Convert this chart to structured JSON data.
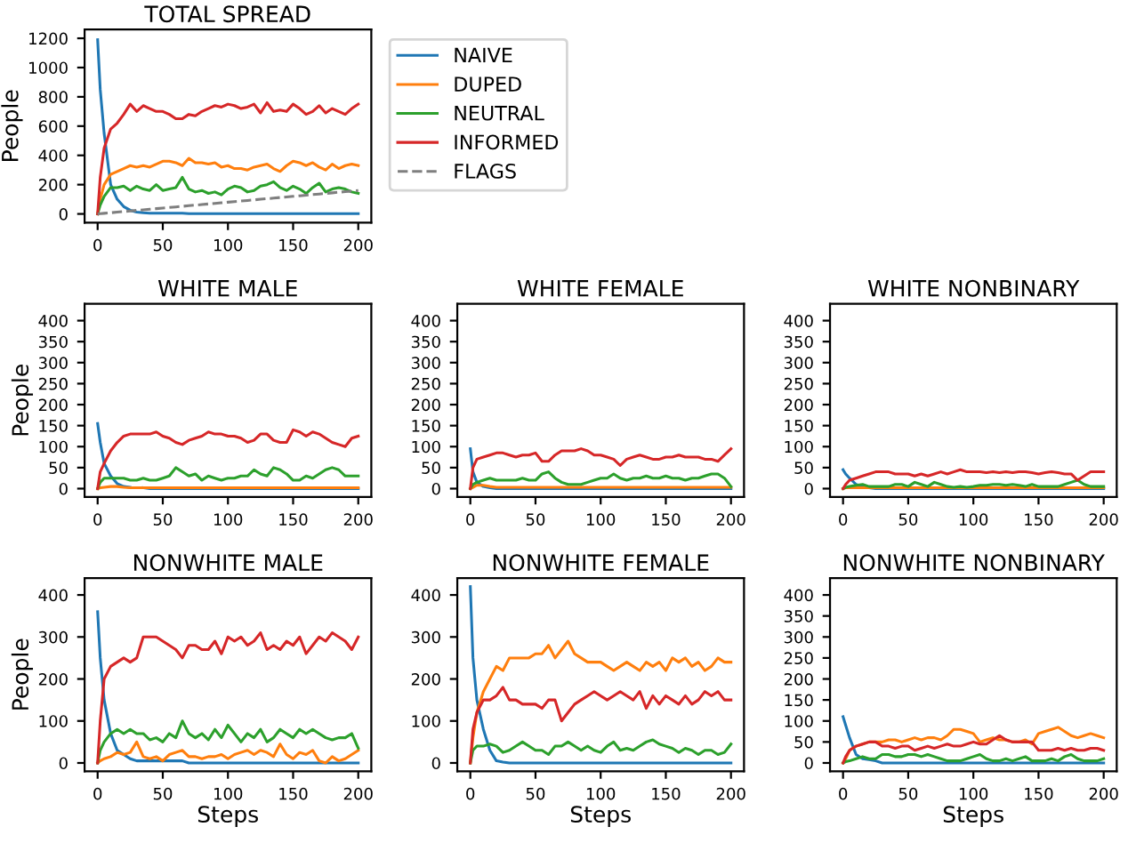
{
  "chart_data": [
    {
      "type": "line",
      "title": "TOTAL SPREAD",
      "ylabel": "People",
      "legend": "right",
      "x": [
        0,
        2,
        5,
        10,
        15,
        20,
        25,
        30,
        35,
        40,
        45,
        50,
        55,
        60,
        65,
        70,
        75,
        80,
        85,
        90,
        95,
        100,
        105,
        110,
        115,
        120,
        125,
        130,
        135,
        140,
        145,
        150,
        155,
        160,
        165,
        170,
        175,
        180,
        185,
        190,
        195,
        200
      ],
      "xlim": [
        -10,
        210
      ],
      "xticks": [
        0,
        50,
        100,
        150,
        200
      ],
      "ylim": [
        -60,
        1260
      ],
      "yticks": [
        0,
        200,
        400,
        600,
        800,
        1000,
        1200
      ],
      "series": [
        {
          "name": "NAIVE",
          "color": "#1f77b4",
          "values": [
            1190,
            850,
            550,
            200,
            100,
            50,
            25,
            12,
            8,
            5,
            5,
            5,
            5,
            5,
            5,
            2,
            2,
            2,
            2,
            2,
            2,
            2,
            2,
            2,
            2,
            2,
            2,
            2,
            2,
            2,
            2,
            2,
            2,
            2,
            2,
            2,
            2,
            2,
            2,
            2,
            2,
            2
          ]
        },
        {
          "name": "DUPED",
          "color": "#ff7f0e",
          "values": [
            0,
            100,
            200,
            270,
            290,
            310,
            330,
            320,
            330,
            320,
            340,
            360,
            360,
            350,
            330,
            380,
            350,
            350,
            340,
            350,
            320,
            330,
            310,
            310,
            300,
            320,
            330,
            340,
            310,
            290,
            330,
            360,
            350,
            330,
            350,
            320,
            300,
            340,
            310,
            330,
            340,
            330
          ]
        },
        {
          "name": "NEUTRAL",
          "color": "#2ca02c",
          "values": [
            0,
            60,
            120,
            180,
            180,
            190,
            160,
            190,
            170,
            160,
            200,
            160,
            170,
            180,
            250,
            170,
            150,
            160,
            140,
            150,
            130,
            170,
            190,
            180,
            150,
            160,
            190,
            200,
            220,
            180,
            160,
            190,
            170,
            140,
            180,
            210,
            150,
            170,
            180,
            170,
            150,
            140
          ]
        },
        {
          "name": "INFORMED",
          "color": "#d62728",
          "values": [
            0,
            250,
            450,
            580,
            620,
            680,
            750,
            700,
            740,
            720,
            700,
            700,
            680,
            650,
            650,
            680,
            670,
            700,
            720,
            740,
            730,
            750,
            740,
            720,
            730,
            750,
            690,
            760,
            700,
            710,
            700,
            750,
            720,
            680,
            700,
            740,
            690,
            720,
            700,
            680,
            720,
            750
          ]
        },
        {
          "name": "FLAGS",
          "color": "#7f7f7f",
          "line_style": "dashed",
          "values": [
            0,
            2,
            4,
            8,
            12,
            16,
            20,
            24,
            28,
            32,
            36,
            40,
            44,
            48,
            52,
            56,
            60,
            64,
            68,
            72,
            76,
            80,
            84,
            88,
            92,
            96,
            100,
            104,
            108,
            112,
            116,
            120,
            124,
            128,
            132,
            136,
            140,
            144,
            148,
            152,
            156,
            160
          ]
        }
      ]
    },
    {
      "type": "line",
      "title": "WHITE MALE",
      "ylabel": "People",
      "x": [
        0,
        2,
        5,
        10,
        15,
        20,
        25,
        30,
        35,
        40,
        45,
        50,
        55,
        60,
        65,
        70,
        75,
        80,
        85,
        90,
        95,
        100,
        105,
        110,
        115,
        120,
        125,
        130,
        135,
        140,
        145,
        150,
        155,
        160,
        165,
        170,
        175,
        180,
        185,
        190,
        195,
        200
      ],
      "xlim": [
        -10,
        210
      ],
      "xticks": [
        0,
        50,
        100,
        150,
        200
      ],
      "ylim": [
        -20,
        440
      ],
      "yticks": [
        0,
        50,
        100,
        150,
        200,
        250,
        300,
        350,
        400
      ],
      "series": [
        {
          "color": "#1f77b4",
          "values": [
            155,
            110,
            60,
            30,
            12,
            5,
            3,
            null,
            2,
            0,
            0,
            0,
            0,
            0,
            0,
            0,
            0,
            0,
            0,
            0,
            0,
            0,
            0,
            0,
            0,
            0,
            0,
            0,
            0,
            0,
            0,
            0,
            0,
            0,
            0,
            0,
            0,
            0,
            0,
            0,
            0,
            0
          ]
        },
        {
          "color": "#ff7f0e",
          "values": [
            0,
            2,
            3,
            5,
            5,
            3,
            2,
            2,
            2,
            2,
            2,
            2,
            2,
            2,
            2,
            2,
            2,
            2,
            2,
            2,
            2,
            2,
            2,
            2,
            2,
            2,
            2,
            2,
            2,
            2,
            2,
            2,
            2,
            2,
            2,
            2,
            2,
            2,
            2,
            2,
            2,
            2
          ]
        },
        {
          "color": "#2ca02c",
          "values": [
            0,
            15,
            25,
            25,
            25,
            25,
            20,
            20,
            25,
            20,
            20,
            25,
            30,
            50,
            40,
            30,
            35,
            20,
            30,
            25,
            20,
            25,
            25,
            30,
            30,
            45,
            35,
            30,
            50,
            45,
            35,
            20,
            20,
            30,
            25,
            35,
            45,
            50,
            45,
            30,
            30,
            30
          ]
        },
        {
          "color": "#d62728",
          "values": [
            0,
            40,
            60,
            90,
            110,
            125,
            130,
            130,
            130,
            130,
            135,
            125,
            120,
            110,
            105,
            115,
            120,
            125,
            135,
            130,
            130,
            125,
            125,
            120,
            110,
            115,
            130,
            130,
            115,
            110,
            110,
            140,
            135,
            125,
            135,
            130,
            120,
            110,
            105,
            100,
            120,
            125
          ]
        }
      ]
    },
    {
      "type": "line",
      "title": "WHITE FEMALE",
      "x": [
        0,
        2,
        5,
        10,
        15,
        20,
        25,
        30,
        35,
        40,
        45,
        50,
        55,
        60,
        65,
        70,
        75,
        80,
        85,
        90,
        95,
        100,
        105,
        110,
        115,
        120,
        125,
        130,
        135,
        140,
        145,
        150,
        155,
        160,
        165,
        170,
        175,
        180,
        185,
        190,
        195,
        200
      ],
      "xlim": [
        -10,
        210
      ],
      "xticks": [
        0,
        50,
        100,
        150,
        200
      ],
      "ylim": [
        -20,
        440
      ],
      "yticks": [
        0,
        50,
        100,
        150,
        200,
        250,
        300,
        350,
        400
      ],
      "series": [
        {
          "color": "#1f77b4",
          "values": [
            95,
            40,
            15,
            5,
            2,
            0,
            0,
            0,
            0,
            0,
            0,
            0,
            0,
            0,
            0,
            0,
            0,
            0,
            0,
            0,
            0,
            0,
            0,
            0,
            0,
            0,
            0,
            0,
            0,
            0,
            0,
            0,
            0,
            0,
            0,
            0,
            0,
            0,
            0,
            0,
            0,
            0
          ]
        },
        {
          "color": "#ff7f0e",
          "values": [
            0,
            3,
            8,
            8,
            5,
            3,
            3,
            3,
            3,
            3,
            3,
            3,
            3,
            3,
            3,
            3,
            3,
            3,
            3,
            3,
            3,
            3,
            3,
            3,
            3,
            3,
            3,
            3,
            3,
            3,
            3,
            3,
            3,
            3,
            3,
            3,
            3,
            3,
            3,
            3,
            3,
            3
          ]
        },
        {
          "color": "#2ca02c",
          "values": [
            0,
            10,
            15,
            20,
            25,
            20,
            20,
            20,
            20,
            25,
            20,
            20,
            35,
            40,
            25,
            15,
            10,
            10,
            10,
            15,
            20,
            25,
            25,
            35,
            25,
            20,
            25,
            25,
            30,
            25,
            25,
            30,
            25,
            25,
            20,
            25,
            25,
            30,
            35,
            35,
            25,
            5
          ]
        },
        {
          "color": "#d62728",
          "values": [
            0,
            50,
            70,
            75,
            80,
            85,
            85,
            80,
            75,
            80,
            80,
            85,
            65,
            65,
            80,
            90,
            90,
            90,
            95,
            90,
            80,
            80,
            75,
            70,
            55,
            70,
            75,
            80,
            75,
            70,
            70,
            75,
            75,
            80,
            75,
            75,
            75,
            70,
            70,
            65,
            80,
            95
          ]
        }
      ]
    },
    {
      "type": "line",
      "title": "WHITE NONBINARY",
      "x": [
        0,
        2,
        5,
        10,
        15,
        20,
        25,
        30,
        35,
        40,
        45,
        50,
        55,
        60,
        65,
        70,
        75,
        80,
        85,
        90,
        95,
        100,
        105,
        110,
        115,
        120,
        125,
        130,
        135,
        140,
        145,
        150,
        155,
        160,
        165,
        170,
        175,
        180,
        185,
        190,
        195,
        200
      ],
      "xlim": [
        -10,
        210
      ],
      "xticks": [
        0,
        50,
        100,
        150,
        200
      ],
      "ylim": [
        -20,
        440
      ],
      "yticks": [
        0,
        50,
        100,
        150,
        200,
        250,
        300,
        350,
        400
      ],
      "series": [
        {
          "color": "#1f77b4",
          "values": [
            45,
            35,
            25,
            10,
            5,
            2,
            0,
            0,
            0,
            0,
            0,
            0,
            0,
            0,
            0,
            0,
            0,
            0,
            0,
            0,
            0,
            0,
            0,
            0,
            0,
            0,
            0,
            0,
            0,
            0,
            0,
            0,
            0,
            0,
            0,
            0,
            0,
            0,
            0,
            0,
            0,
            0
          ]
        },
        {
          "color": "#ff7f0e",
          "values": [
            0,
            2,
            2,
            2,
            2,
            2,
            2,
            2,
            2,
            2,
            2,
            2,
            2,
            2,
            2,
            2,
            2,
            2,
            2,
            2,
            2,
            2,
            2,
            2,
            2,
            2,
            2,
            2,
            2,
            2,
            2,
            2,
            2,
            2,
            2,
            2,
            2,
            2,
            2,
            2,
            2,
            2
          ]
        },
        {
          "color": "#2ca02c",
          "values": [
            0,
            3,
            5,
            8,
            10,
            5,
            5,
            5,
            5,
            10,
            10,
            5,
            15,
            10,
            5,
            15,
            10,
            5,
            3,
            5,
            3,
            5,
            8,
            8,
            10,
            10,
            8,
            10,
            8,
            5,
            10,
            5,
            5,
            5,
            5,
            10,
            15,
            20,
            10,
            5,
            5,
            5
          ]
        },
        {
          "color": "#d62728",
          "values": [
            0,
            10,
            20,
            25,
            30,
            35,
            40,
            40,
            40,
            35,
            35,
            35,
            30,
            35,
            30,
            35,
            40,
            35,
            40,
            45,
            40,
            40,
            40,
            38,
            40,
            38,
            40,
            38,
            40,
            40,
            38,
            35,
            38,
            40,
            38,
            35,
            35,
            20,
            30,
            40,
            40,
            40
          ]
        }
      ]
    },
    {
      "type": "line",
      "title": "NONWHITE MALE",
      "ylabel": "People",
      "xlabel": "Steps",
      "x": [
        0,
        2,
        5,
        10,
        15,
        20,
        25,
        30,
        35,
        40,
        45,
        50,
        55,
        60,
        65,
        70,
        75,
        80,
        85,
        90,
        95,
        100,
        105,
        110,
        115,
        120,
        125,
        130,
        135,
        140,
        145,
        150,
        155,
        160,
        165,
        170,
        175,
        180,
        185,
        190,
        195,
        200
      ],
      "xlim": [
        -10,
        210
      ],
      "xticks": [
        0,
        50,
        100,
        150,
        200
      ],
      "ylim": [
        -20,
        440
      ],
      "yticks": [
        0,
        100,
        200,
        300,
        400
      ],
      "series": [
        {
          "color": "#1f77b4",
          "values": [
            360,
            250,
            150,
            70,
            30,
            20,
            10,
            5,
            5,
            5,
            5,
            5,
            5,
            5,
            5,
            0,
            0,
            0,
            0,
            0,
            0,
            0,
            0,
            0,
            0,
            0,
            0,
            0,
            0,
            0,
            0,
            0,
            0,
            0,
            0,
            0,
            0,
            0,
            0,
            0,
            0,
            0
          ]
        },
        {
          "color": "#ff7f0e",
          "values": [
            0,
            5,
            10,
            15,
            25,
            20,
            25,
            50,
            15,
            10,
            15,
            5,
            20,
            25,
            30,
            15,
            15,
            10,
            15,
            15,
            20,
            10,
            20,
            25,
            30,
            20,
            30,
            25,
            15,
            45,
            20,
            10,
            25,
            20,
            30,
            5,
            0,
            15,
            5,
            10,
            20,
            30
          ]
        },
        {
          "color": "#2ca02c",
          "values": [
            0,
            30,
            50,
            70,
            80,
            70,
            80,
            70,
            70,
            55,
            60,
            50,
            70,
            60,
            100,
            70,
            60,
            70,
            55,
            80,
            60,
            90,
            70,
            50,
            70,
            60,
            80,
            50,
            60,
            80,
            70,
            60,
            80,
            70,
            80,
            70,
            60,
            55,
            60,
            60,
            70,
            35
          ]
        },
        {
          "color": "#d62728",
          "values": [
            0,
            100,
            200,
            230,
            240,
            250,
            240,
            250,
            300,
            300,
            300,
            290,
            280,
            270,
            250,
            280,
            280,
            270,
            270,
            290,
            260,
            300,
            290,
            300,
            280,
            290,
            310,
            270,
            280,
            270,
            290,
            280,
            300,
            260,
            280,
            300,
            290,
            310,
            300,
            290,
            270,
            300
          ]
        }
      ]
    },
    {
      "type": "line",
      "title": "NONWHITE FEMALE",
      "xlabel": "Steps",
      "x": [
        0,
        2,
        5,
        10,
        15,
        20,
        25,
        30,
        35,
        40,
        45,
        50,
        55,
        60,
        65,
        70,
        75,
        80,
        85,
        90,
        95,
        100,
        105,
        110,
        115,
        120,
        125,
        130,
        135,
        140,
        145,
        150,
        155,
        160,
        165,
        170,
        175,
        180,
        185,
        190,
        195,
        200
      ],
      "xlim": [
        -10,
        210
      ],
      "xticks": [
        0,
        50,
        100,
        150,
        200
      ],
      "ylim": [
        -20,
        440
      ],
      "yticks": [
        0,
        100,
        200,
        300,
        400
      ],
      "series": [
        {
          "color": "#1f77b4",
          "values": [
            420,
            250,
            150,
            80,
            30,
            5,
            2,
            0,
            0,
            0,
            0,
            0,
            0,
            0,
            0,
            0,
            0,
            0,
            0,
            0,
            0,
            0,
            0,
            0,
            0,
            0,
            0,
            0,
            0,
            0,
            0,
            0,
            0,
            0,
            0,
            0,
            0,
            0,
            0,
            0,
            0,
            0
          ]
        },
        {
          "color": "#ff7f0e",
          "values": [
            0,
            60,
            120,
            170,
            200,
            230,
            220,
            250,
            250,
            250,
            250,
            260,
            260,
            280,
            250,
            270,
            290,
            260,
            250,
            240,
            240,
            240,
            230,
            220,
            230,
            240,
            230,
            220,
            240,
            230,
            240,
            220,
            250,
            240,
            250,
            230,
            240,
            220,
            230,
            250,
            240,
            240
          ]
        },
        {
          "color": "#2ca02c",
          "values": [
            0,
            30,
            40,
            40,
            45,
            40,
            25,
            30,
            40,
            50,
            40,
            30,
            30,
            20,
            40,
            40,
            50,
            40,
            30,
            40,
            30,
            25,
            40,
            50,
            30,
            35,
            30,
            40,
            50,
            55,
            45,
            40,
            35,
            25,
            35,
            30,
            20,
            30,
            30,
            20,
            25,
            45
          ]
        },
        {
          "color": "#d62728",
          "values": [
            0,
            80,
            120,
            150,
            150,
            160,
            180,
            150,
            150,
            140,
            140,
            140,
            130,
            150,
            150,
            100,
            120,
            140,
            150,
            160,
            170,
            160,
            150,
            160,
            170,
            160,
            150,
            170,
            130,
            160,
            140,
            160,
            150,
            140,
            160,
            140,
            150,
            170,
            160,
            170,
            150,
            150
          ]
        }
      ]
    },
    {
      "type": "line",
      "title": "NONWHITE NONBINARY",
      "xlabel": "Steps",
      "x": [
        0,
        2,
        5,
        10,
        15,
        20,
        25,
        30,
        35,
        40,
        45,
        50,
        55,
        60,
        65,
        70,
        75,
        80,
        85,
        90,
        95,
        100,
        105,
        110,
        115,
        120,
        125,
        130,
        135,
        140,
        145,
        150,
        155,
        160,
        165,
        170,
        175,
        180,
        185,
        190,
        195,
        200
      ],
      "xlim": [
        -10,
        210
      ],
      "xticks": [
        0,
        50,
        100,
        150,
        200
      ],
      "ylim": [
        -20,
        440
      ],
      "yticks": [
        0,
        50,
        100,
        150,
        200,
        250,
        300,
        350,
        400
      ],
      "series": [
        {
          "color": "#1f77b4",
          "values": [
            110,
            90,
            60,
            20,
            10,
            8,
            5,
            0,
            0,
            0,
            0,
            0,
            0,
            0,
            0,
            0,
            0,
            0,
            0,
            0,
            0,
            0,
            0,
            0,
            0,
            0,
            0,
            0,
            0,
            0,
            0,
            0,
            0,
            0,
            0,
            0,
            0,
            0,
            0,
            0,
            0,
            0
          ]
        },
        {
          "color": "#ff7f0e",
          "values": [
            0,
            10,
            30,
            40,
            45,
            50,
            50,
            50,
            55,
            55,
            50,
            55,
            60,
            55,
            60,
            60,
            55,
            65,
            80,
            80,
            75,
            70,
            50,
            55,
            60,
            55,
            55,
            50,
            50,
            55,
            45,
            70,
            75,
            80,
            85,
            75,
            65,
            60,
            65,
            70,
            65,
            60
          ]
        },
        {
          "color": "#2ca02c",
          "values": [
            0,
            3,
            5,
            10,
            15,
            10,
            10,
            20,
            20,
            15,
            15,
            20,
            20,
            15,
            20,
            15,
            10,
            5,
            5,
            5,
            10,
            15,
            20,
            10,
            5,
            5,
            10,
            5,
            10,
            15,
            5,
            5,
            5,
            10,
            5,
            15,
            20,
            10,
            5,
            5,
            5,
            10
          ]
        },
        {
          "color": "#d62728",
          "values": [
            0,
            15,
            30,
            40,
            45,
            50,
            50,
            40,
            40,
            35,
            40,
            40,
            30,
            35,
            40,
            35,
            40,
            45,
            40,
            40,
            45,
            50,
            45,
            45,
            55,
            65,
            55,
            50,
            50,
            50,
            50,
            30,
            30,
            30,
            35,
            30,
            35,
            30,
            30,
            35,
            35,
            30
          ]
        }
      ]
    }
  ]
}
